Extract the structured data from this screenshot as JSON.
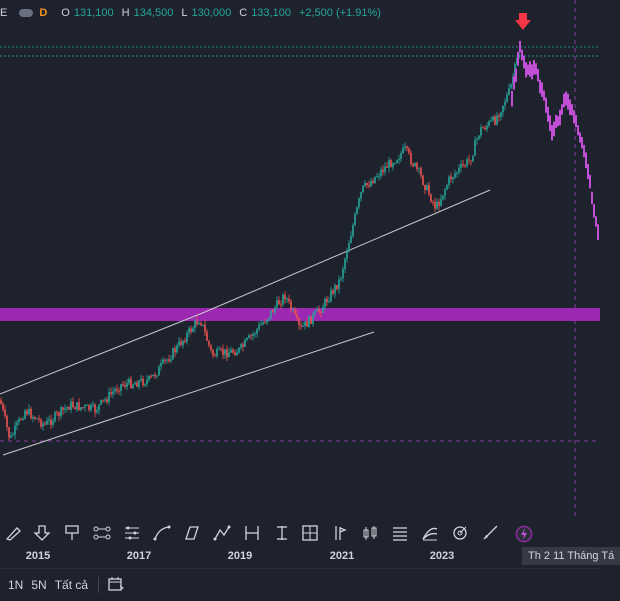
{
  "legend": {
    "symbol": "E",
    "badge": "D",
    "open_label": "O",
    "open": "131,100",
    "high_label": "H",
    "high": "134,500",
    "low_label": "L",
    "low": "130,000",
    "close_label": "C",
    "close": "133,100",
    "change": "+2,500 (+1.91%)",
    "up_color": "#26a69a"
  },
  "colors": {
    "up": "#26a69a",
    "down": "#ef5350",
    "projection": "#c14fd6",
    "zone": "#9c27b0",
    "trendline": "#c8c8d0",
    "arrow": "#f23645"
  },
  "xaxis": {
    "labels": [
      "2015",
      "2017",
      "2019",
      "2021",
      "2023"
    ],
    "crosshair_date": "Th 2 11 Tháng Tá"
  },
  "toolbar": {
    "tools": [
      "brush-icon",
      "arrow-down-icon",
      "flag-icon",
      "range-icon",
      "sequence-icon",
      "path-icon",
      "curve-icon",
      "parallelogram-icon",
      "triangle-pattern-icon",
      "long-short-icon",
      "date-range-icon",
      "price-range-icon",
      "candle-tool-icon",
      "bar-pattern-icon",
      "fib-icon",
      "fib-arc-icon",
      "gann-icon",
      "ruler-icon",
      "lightning-icon"
    ]
  },
  "bottombar": {
    "range_1y": "1N",
    "range_5y": "5N",
    "range_all": "Tất cả",
    "calendar_icon": "calendar-icon"
  }
}
